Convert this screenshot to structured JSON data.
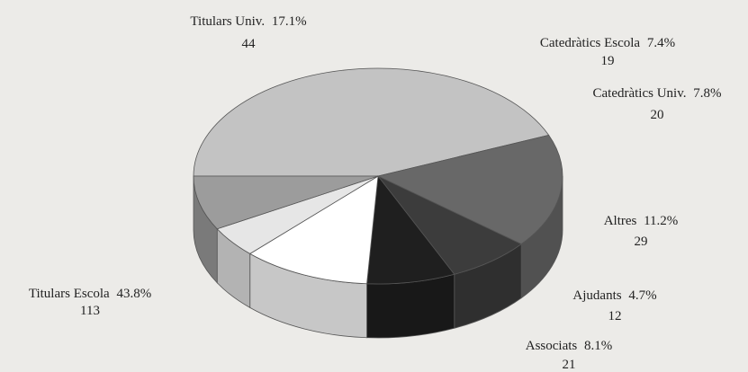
{
  "chart_data": {
    "type": "pie",
    "style": "3d",
    "title": "",
    "slices": [
      {
        "label": "Titulars Escola",
        "percent_text": "43.8%",
        "value": 113,
        "percent": 43.8,
        "color": "#c3c3c3"
      },
      {
        "label": "Titulars Univ.",
        "percent_text": "17.1%",
        "value": 44,
        "percent": 17.1,
        "color": "#686868"
      },
      {
        "label": "Catedràtics Escola",
        "percent_text": "7.4%",
        "value": 19,
        "percent": 7.4,
        "color": "#3c3c3c"
      },
      {
        "label": "Catedràtics Univ.",
        "percent_text": "7.8%",
        "value": 20,
        "percent": 7.8,
        "color": "#1f1f1f"
      },
      {
        "label": "Altres",
        "percent_text": "11.2%",
        "value": 29,
        "percent": 11.2,
        "color": "#ffffff"
      },
      {
        "label": "Ajudants",
        "percent_text": "4.7%",
        "value": 12,
        "percent": 4.7,
        "color": "#e6e6e6"
      },
      {
        "label": "Associats",
        "percent_text": "8.1%",
        "value": 21,
        "percent": 8.1,
        "color": "#9c9c9c"
      }
    ]
  }
}
